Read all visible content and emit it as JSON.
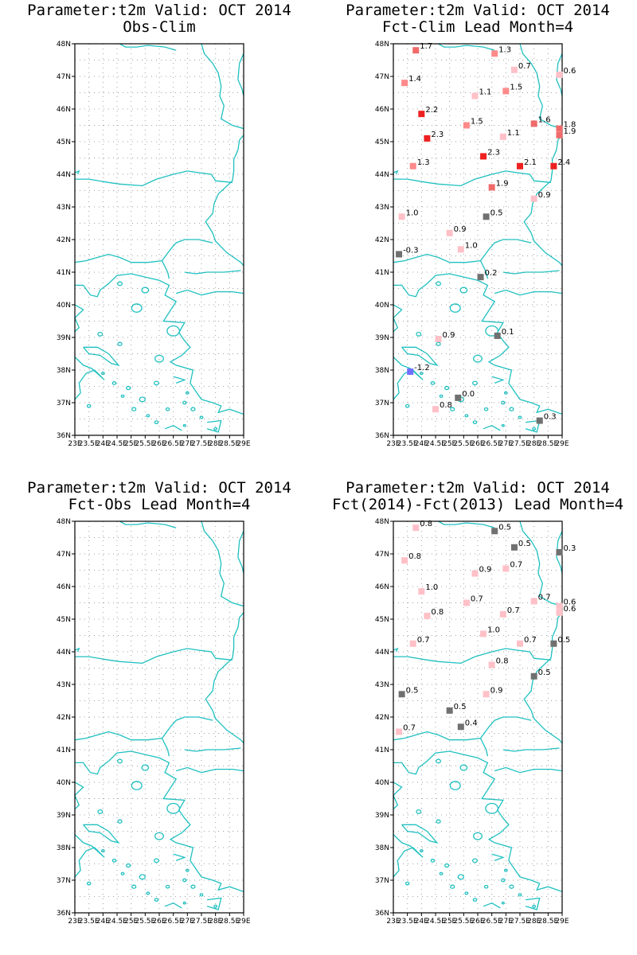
{
  "lat_labels": [
    "36N",
    "37N",
    "38N",
    "39N",
    "40N",
    "41N",
    "42N",
    "43N",
    "44N",
    "45N",
    "46N",
    "47N",
    "48N"
  ],
  "lon_labels": [
    "23E",
    "23.5E",
    "24E",
    "24.5E",
    "25E",
    "25.5E",
    "26E",
    "26.5E",
    "27E",
    "27.5E",
    "28E",
    "28.5E",
    "29E"
  ],
  "colors": {
    "coast": "#20c0c0",
    "grid": "#a0a0a0",
    "frame": "#000000",
    "v_gray": "#707070",
    "v_pink_light": "#ffc0c8",
    "v_pink": "#ff8a8a",
    "v_salmon": "#f06a6a",
    "v_red": "#ee2020",
    "v_blue": "#7070ff"
  },
  "panels": [
    {
      "id": "obs-clim",
      "title_line1": "Parameter:t2m Valid: OCT 2014",
      "title_line2": "Obs-Clim",
      "points": []
    },
    {
      "id": "fct-clim",
      "title_line1": "Parameter:t2m Valid: OCT 2014",
      "title_line2": "Fct-Clim Lead Month=4",
      "points": [
        {
          "lon": 23.8,
          "lat": 47.8,
          "v": 1.7,
          "label": "1.7"
        },
        {
          "lon": 26.6,
          "lat": 47.7,
          "v": 1.3,
          "label": "1.3"
        },
        {
          "lon": 27.3,
          "lat": 47.2,
          "v": 0.7,
          "label": "0.7"
        },
        {
          "lon": 28.9,
          "lat": 47.05,
          "v": 0.6,
          "label": "0.6"
        },
        {
          "lon": 23.4,
          "lat": 46.8,
          "v": 1.4,
          "label": "1.4"
        },
        {
          "lon": 25.9,
          "lat": 46.4,
          "v": 1.1,
          "label": "1.1"
        },
        {
          "lon": 27.0,
          "lat": 46.55,
          "v": 1.5,
          "label": "1.5"
        },
        {
          "lon": 24.0,
          "lat": 45.85,
          "v": 2.2,
          "label": "2.2"
        },
        {
          "lon": 25.6,
          "lat": 45.5,
          "v": 1.5,
          "label": "1.5"
        },
        {
          "lon": 28.0,
          "lat": 45.55,
          "v": 1.6,
          "label": "1.6"
        },
        {
          "lon": 28.9,
          "lat": 45.4,
          "v": 1.8,
          "label": "1.8"
        },
        {
          "lon": 28.9,
          "lat": 45.2,
          "v": 1.9,
          "label": "1.9"
        },
        {
          "lon": 24.2,
          "lat": 45.1,
          "v": 2.3,
          "label": "2.3"
        },
        {
          "lon": 26.9,
          "lat": 45.15,
          "v": 1.1,
          "label": "1.1"
        },
        {
          "lon": 26.2,
          "lat": 44.55,
          "v": 2.3,
          "label": "2.3"
        },
        {
          "lon": 23.7,
          "lat": 44.25,
          "v": 1.3,
          "label": "1.3"
        },
        {
          "lon": 27.5,
          "lat": 44.25,
          "v": 2.1,
          "label": "2.1"
        },
        {
          "lon": 28.7,
          "lat": 44.25,
          "v": 2.4,
          "label": "2.4"
        },
        {
          "lon": 26.5,
          "lat": 43.6,
          "v": 1.9,
          "label": "1.9"
        },
        {
          "lon": 28.0,
          "lat": 43.25,
          "v": 0.9,
          "label": "0.9"
        },
        {
          "lon": 23.3,
          "lat": 42.7,
          "v": 1.0,
          "label": "1.0"
        },
        {
          "lon": 26.3,
          "lat": 42.7,
          "v": 0.5,
          "label": "0.5"
        },
        {
          "lon": 25.0,
          "lat": 42.2,
          "v": 0.9,
          "label": "0.9"
        },
        {
          "lon": 25.4,
          "lat": 41.7,
          "v": 1.0,
          "label": "1.0"
        },
        {
          "lon": 23.2,
          "lat": 41.55,
          "v": -0.3,
          "label": "-0.3"
        },
        {
          "lon": 26.1,
          "lat": 40.85,
          "v": 0.2,
          "label": "0.2"
        },
        {
          "lon": 26.7,
          "lat": 39.05,
          "v": 0.1,
          "label": "0.1"
        },
        {
          "lon": 24.6,
          "lat": 38.95,
          "v": 0.9,
          "label": "0.9"
        },
        {
          "lon": 23.6,
          "lat": 37.95,
          "v": -1.2,
          "label": "-1.2"
        },
        {
          "lon": 25.3,
          "lat": 37.15,
          "v": 0.0,
          "label": "0.0"
        },
        {
          "lon": 24.5,
          "lat": 36.8,
          "v": 0.8,
          "label": "0.8"
        },
        {
          "lon": 28.2,
          "lat": 36.45,
          "v": 0.3,
          "label": "0.3"
        }
      ]
    },
    {
      "id": "fct-obs",
      "title_line1": "Parameter:t2m Valid: OCT 2014",
      "title_line2": "Fct-Obs Lead Month=4",
      "points": []
    },
    {
      "id": "fct2014-fct2013",
      "title_line1": "Parameter:t2m Valid: OCT 2014",
      "title_line2": "Fct(2014)-Fct(2013) Lead Month=4",
      "points": [
        {
          "lon": 23.8,
          "lat": 47.8,
          "v": 0.8,
          "label": "0.8"
        },
        {
          "lon": 26.6,
          "lat": 47.7,
          "v": 0.5,
          "label": "0.5"
        },
        {
          "lon": 27.3,
          "lat": 47.2,
          "v": 0.5,
          "label": "0.5"
        },
        {
          "lon": 28.9,
          "lat": 47.05,
          "v": 0.3,
          "label": "0.3"
        },
        {
          "lon": 23.4,
          "lat": 46.8,
          "v": 0.8,
          "label": "0.8"
        },
        {
          "lon": 25.9,
          "lat": 46.4,
          "v": 0.9,
          "label": "0.9"
        },
        {
          "lon": 27.0,
          "lat": 46.55,
          "v": 0.7,
          "label": "0.7"
        },
        {
          "lon": 24.0,
          "lat": 45.85,
          "v": 1.0,
          "label": "1.0"
        },
        {
          "lon": 25.6,
          "lat": 45.5,
          "v": 0.7,
          "label": "0.7"
        },
        {
          "lon": 28.0,
          "lat": 45.55,
          "v": 0.7,
          "label": "0.7"
        },
        {
          "lon": 28.9,
          "lat": 45.4,
          "v": 0.6,
          "label": "0.6"
        },
        {
          "lon": 28.9,
          "lat": 45.2,
          "v": 0.6,
          "label": "0.6"
        },
        {
          "lon": 24.2,
          "lat": 45.1,
          "v": 0.8,
          "label": "0.8"
        },
        {
          "lon": 26.9,
          "lat": 45.15,
          "v": 0.7,
          "label": "0.7"
        },
        {
          "lon": 26.2,
          "lat": 44.55,
          "v": 1.0,
          "label": "1.0"
        },
        {
          "lon": 23.7,
          "lat": 44.25,
          "v": 0.7,
          "label": "0.7"
        },
        {
          "lon": 27.5,
          "lat": 44.25,
          "v": 0.7,
          "label": "0.7"
        },
        {
          "lon": 28.7,
          "lat": 44.25,
          "v": 0.5,
          "label": "0.5"
        },
        {
          "lon": 26.5,
          "lat": 43.6,
          "v": 0.8,
          "label": "0.8"
        },
        {
          "lon": 28.0,
          "lat": 43.25,
          "v": 0.5,
          "label": "0.5"
        },
        {
          "lon": 23.3,
          "lat": 42.7,
          "v": 0.5,
          "label": "0.5"
        },
        {
          "lon": 26.3,
          "lat": 42.7,
          "v": 0.9,
          "label": "0.9"
        },
        {
          "lon": 25.0,
          "lat": 42.2,
          "v": 0.5,
          "label": "0.5"
        },
        {
          "lon": 25.4,
          "lat": 41.7,
          "v": 0.4,
          "label": "0.4"
        },
        {
          "lon": 23.2,
          "lat": 41.55,
          "v": 0.7,
          "label": "0.7"
        }
      ]
    }
  ]
}
